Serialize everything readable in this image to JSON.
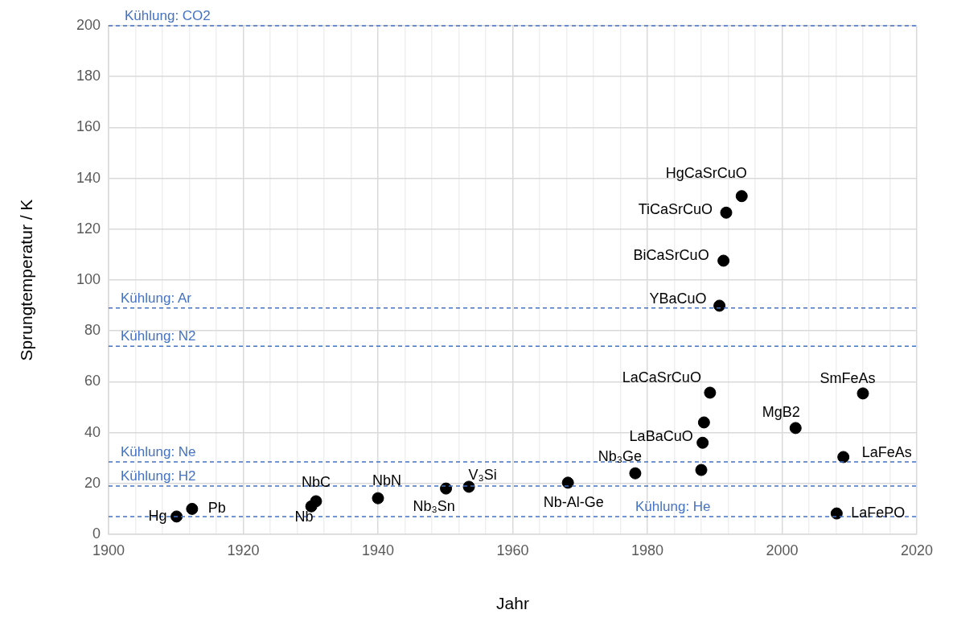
{
  "chart_data": {
    "type": "scatter",
    "xlabel": "Jahr",
    "ylabel": "Sprungtemperatur / K",
    "xlim": [
      1900,
      2020
    ],
    "ylim": [
      0,
      200
    ],
    "xticks": [
      1900,
      {
        "value": 1904,
        "label": null
      },
      {
        "value": 1908,
        "label": null
      },
      {
        "value": 1912,
        "label": null
      },
      {
        "value": 1916,
        "label": null
      },
      1920,
      {
        "value": 1924,
        "label": null
      },
      {
        "value": 1928,
        "label": null
      },
      {
        "value": 1932,
        "label": null
      },
      {
        "value": 1936,
        "label": null
      },
      1940,
      {
        "value": 1944,
        "label": null
      },
      {
        "value": 1948,
        "label": null
      },
      {
        "value": 1952,
        "label": null
      },
      {
        "value": 1956,
        "label": null
      },
      1960,
      {
        "value": 1964,
        "label": null
      },
      {
        "value": 1968,
        "label": null
      },
      {
        "value": 1972,
        "label": null
      },
      {
        "value": 1976,
        "label": null
      },
      1980,
      {
        "value": 1984,
        "label": null
      },
      {
        "value": 1988,
        "label": null
      },
      {
        "value": 1992,
        "label": null
      },
      {
        "value": 1996,
        "label": null
      },
      2000,
      {
        "value": 2004,
        "label": null
      },
      {
        "value": 2008,
        "label": null
      },
      {
        "value": 2012,
        "label": null
      },
      {
        "value": 2016,
        "label": null
      },
      2020
    ],
    "yticks": [
      0,
      20,
      40,
      60,
      80,
      100,
      120,
      140,
      160,
      180,
      200
    ],
    "grid": true,
    "legend": false,
    "marker": "circle",
    "series": [
      {
        "color": "#000000",
        "x": [
          1910.1,
          1912.4,
          1930.1,
          1930.8,
          1940,
          1950.1,
          1953.5,
          1968.2,
          1978.2,
          1988,
          1988.2,
          1988.4,
          1989.3,
          1990.7,
          1991.3,
          1991.7,
          1994,
          2002,
          2008.1,
          2009.1,
          2012
        ],
        "values": [
          7,
          10,
          11,
          13,
          14.2,
          18,
          18.7,
          20.3,
          24,
          25.3,
          36,
          44,
          55.7,
          89.9,
          107.6,
          126.5,
          133,
          41.8,
          8.2,
          30.4,
          55.4
        ],
        "value_labels": [
          "Hg",
          "Pb",
          "Nb",
          "NbC",
          "NbN",
          "Nb₃Sn",
          "V₃Si",
          "Nb-Al-Ge",
          "Nb₃Ge",
          null,
          "LaBaCuO",
          null,
          "LaCaSrCuO",
          "YBaCuO",
          "BiCaSrCuO",
          "TiCaSrCuO",
          "HgCaSrCuO",
          "MgB2",
          "LaFePO",
          "LaFeAs",
          "SmFeAs"
        ]
      }
    ],
    "ref_lines": [
      {
        "axis": "y",
        "value": 200,
        "label": "Kühlung: CO2",
        "color": "#4472c4",
        "line_style": "dashed"
      },
      {
        "axis": "y",
        "value": 89,
        "label": "Kühlung: Ar",
        "color": "#4472c4",
        "line_style": "dashed"
      },
      {
        "axis": "y",
        "value": 74,
        "label": "Kühlung: N2",
        "color": "#4472c4",
        "line_style": "dashed"
      },
      {
        "axis": "y",
        "value": 28.5,
        "label": "Kühlung: Ne",
        "color": "#4472c4",
        "line_style": "dashed"
      },
      {
        "axis": "y",
        "value": 19,
        "label": "Kühlung: H2",
        "color": "#4472c4",
        "line_style": "dashed"
      },
      {
        "axis": "y",
        "value": 7,
        "label": "Kühlung: He",
        "color": "#4472c4",
        "line_style": "dashed"
      }
    ]
  }
}
